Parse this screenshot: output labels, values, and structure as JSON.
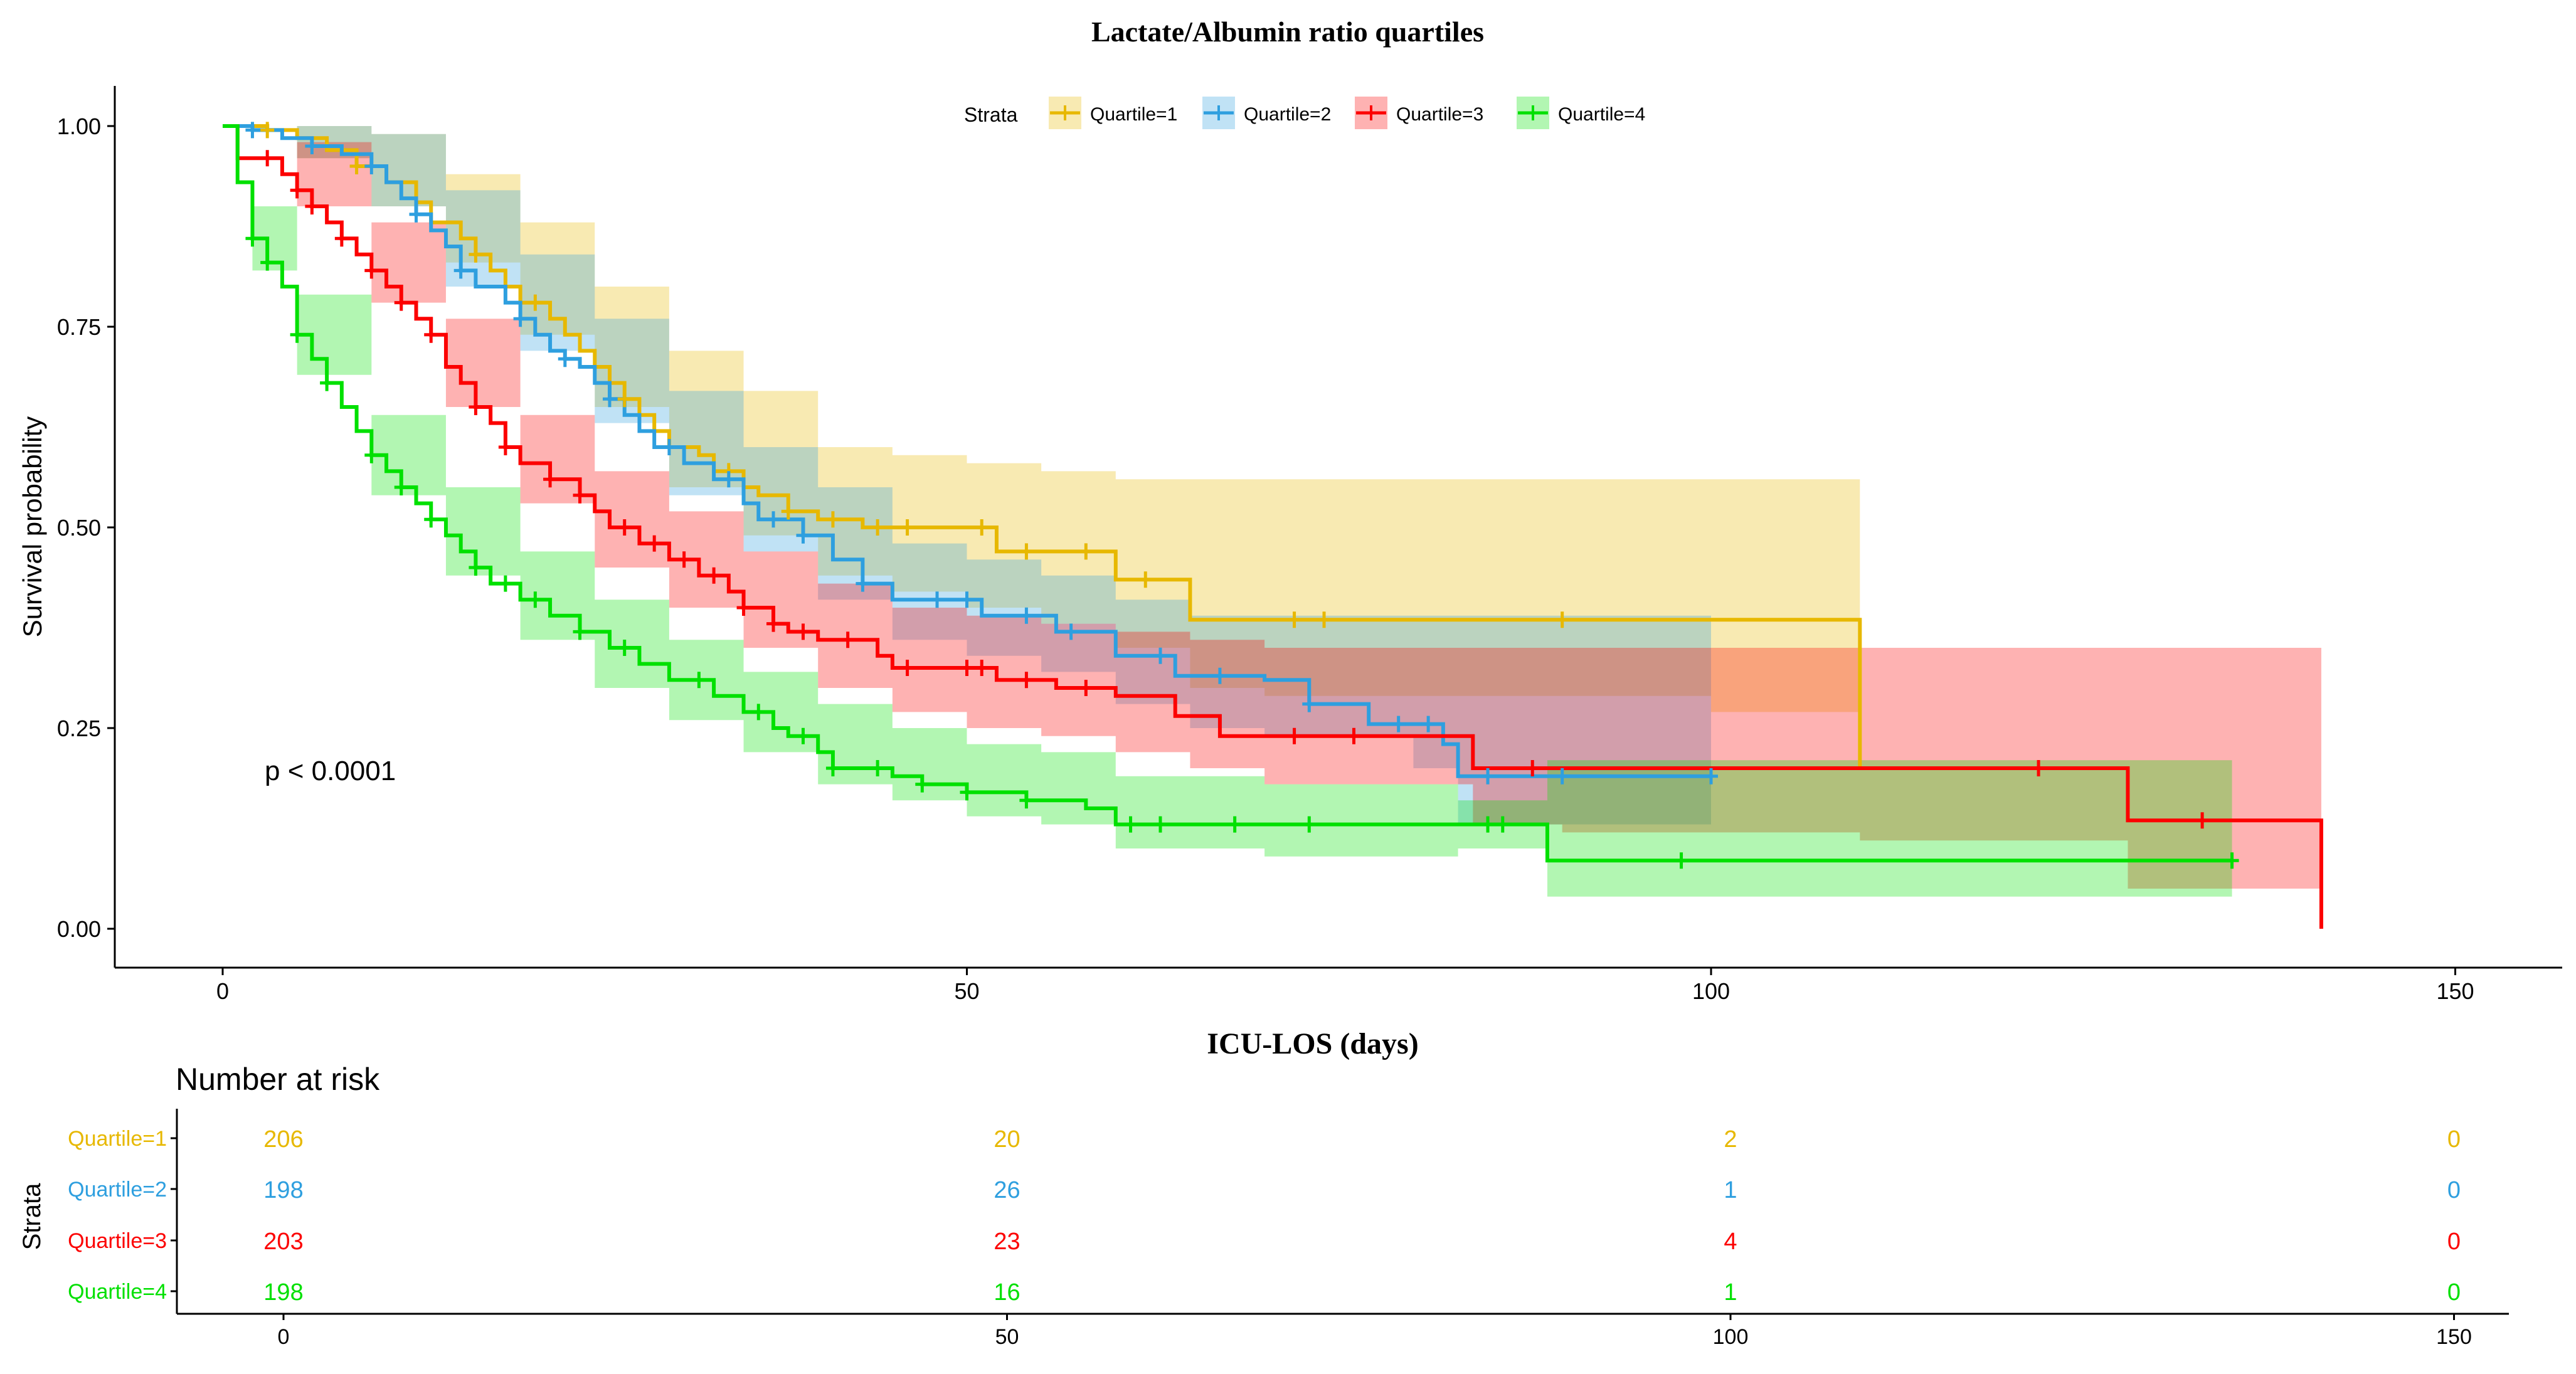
{
  "chart_data": {
    "type": "line",
    "subtype": "kaplan-meier",
    "title": "Lactate/Albumin ratio quartiles",
    "xlabel": "ICU-LOS (days)",
    "ylabel": "Survival probability",
    "xlim": [
      -7,
      158
    ],
    "ylim": [
      -0.05,
      1.05
    ],
    "x_ticks": [
      0,
      50,
      100,
      150
    ],
    "y_ticks": [
      0.0,
      0.25,
      0.5,
      0.75,
      1.0
    ],
    "y_tick_labels": [
      "0.00",
      "0.25",
      "0.50",
      "0.75",
      "1.00"
    ],
    "grid": false,
    "legend_title": "Strata",
    "legend_position": "top",
    "annotation": "p < 0.0001",
    "annotation_x": 3,
    "annotation_y": 0.2,
    "series": [
      {
        "name": "Quartile=1",
        "color": "#E7B800",
        "steps": [
          [
            0,
            1.0
          ],
          [
            3,
            0.995
          ],
          [
            5,
            0.985
          ],
          [
            7,
            0.97
          ],
          [
            9,
            0.95
          ],
          [
            11,
            0.93
          ],
          [
            13,
            0.905
          ],
          [
            14,
            0.88
          ],
          [
            16,
            0.86
          ],
          [
            17,
            0.84
          ],
          [
            18,
            0.82
          ],
          [
            19,
            0.8
          ],
          [
            20,
            0.78
          ],
          [
            22,
            0.76
          ],
          [
            23,
            0.74
          ],
          [
            24,
            0.72
          ],
          [
            25,
            0.7
          ],
          [
            26,
            0.68
          ],
          [
            27,
            0.66
          ],
          [
            28,
            0.64
          ],
          [
            29,
            0.62
          ],
          [
            30,
            0.6
          ],
          [
            32,
            0.59
          ],
          [
            33,
            0.57
          ],
          [
            35,
            0.55
          ],
          [
            36,
            0.54
          ],
          [
            38,
            0.52
          ],
          [
            40,
            0.51
          ],
          [
            43,
            0.5
          ],
          [
            52,
            0.47
          ],
          [
            56,
            0.47
          ],
          [
            60,
            0.435
          ],
          [
            65,
            0.385
          ],
          [
            110,
            0.2
          ]
        ],
        "end_x": 110,
        "ci_steps": [
          [
            0,
            1.0,
            1.0
          ],
          [
            5,
            0.96,
            1.0
          ],
          [
            10,
            0.9,
            0.99
          ],
          [
            15,
            0.83,
            0.94
          ],
          [
            20,
            0.74,
            0.88
          ],
          [
            25,
            0.65,
            0.8
          ],
          [
            30,
            0.55,
            0.72
          ],
          [
            35,
            0.49,
            0.67
          ],
          [
            40,
            0.44,
            0.6
          ],
          [
            45,
            0.42,
            0.59
          ],
          [
            50,
            0.4,
            0.58
          ],
          [
            55,
            0.38,
            0.57
          ],
          [
            60,
            0.35,
            0.56
          ],
          [
            65,
            0.3,
            0.56
          ],
          [
            70,
            0.29,
            0.56
          ],
          [
            100,
            0.27,
            0.56
          ],
          [
            110,
            0.27,
            0.56
          ]
        ],
        "censor_x": [
          3,
          9,
          17,
          21,
          27,
          34,
          38,
          41,
          44,
          46,
          51,
          54,
          58,
          62,
          72,
          74,
          90
        ]
      },
      {
        "name": "Quartile=2",
        "color": "#2E9FDF",
        "steps": [
          [
            0,
            1.0
          ],
          [
            2,
            0.995
          ],
          [
            4,
            0.985
          ],
          [
            6,
            0.975
          ],
          [
            8,
            0.965
          ],
          [
            10,
            0.95
          ],
          [
            11,
            0.93
          ],
          [
            12,
            0.91
          ],
          [
            13,
            0.89
          ],
          [
            14,
            0.87
          ],
          [
            15,
            0.85
          ],
          [
            16,
            0.82
          ],
          [
            17,
            0.8
          ],
          [
            19,
            0.78
          ],
          [
            20,
            0.76
          ],
          [
            21,
            0.74
          ],
          [
            22,
            0.72
          ],
          [
            23,
            0.71
          ],
          [
            24,
            0.7
          ],
          [
            25,
            0.68
          ],
          [
            26,
            0.66
          ],
          [
            27,
            0.64
          ],
          [
            28,
            0.62
          ],
          [
            29,
            0.6
          ],
          [
            31,
            0.58
          ],
          [
            33,
            0.56
          ],
          [
            35,
            0.53
          ],
          [
            36,
            0.51
          ],
          [
            39,
            0.49
          ],
          [
            41,
            0.46
          ],
          [
            43,
            0.43
          ],
          [
            45,
            0.41
          ],
          [
            51,
            0.39
          ],
          [
            56,
            0.37
          ],
          [
            60,
            0.34
          ],
          [
            64,
            0.315
          ],
          [
            70,
            0.31
          ],
          [
            73,
            0.28
          ],
          [
            77,
            0.255
          ],
          [
            82,
            0.23
          ],
          [
            83,
            0.19
          ],
          [
            100,
            0.19
          ]
        ],
        "end_x": 100,
        "ci_steps": [
          [
            0,
            1.0,
            1.0
          ],
          [
            5,
            0.96,
            1.0
          ],
          [
            10,
            0.9,
            0.99
          ],
          [
            15,
            0.8,
            0.92
          ],
          [
            20,
            0.72,
            0.84
          ],
          [
            25,
            0.63,
            0.76
          ],
          [
            30,
            0.54,
            0.67
          ],
          [
            35,
            0.47,
            0.6
          ],
          [
            40,
            0.41,
            0.55
          ],
          [
            45,
            0.36,
            0.48
          ],
          [
            50,
            0.34,
            0.46
          ],
          [
            55,
            0.32,
            0.44
          ],
          [
            60,
            0.28,
            0.41
          ],
          [
            65,
            0.25,
            0.39
          ],
          [
            70,
            0.24,
            0.39
          ],
          [
            80,
            0.2,
            0.39
          ],
          [
            83,
            0.13,
            0.39
          ],
          [
            100,
            0.1,
            0.39
          ]
        ],
        "censor_x": [
          2,
          6,
          10,
          13,
          16,
          20,
          23,
          26,
          30,
          34,
          37,
          39,
          43,
          48,
          50,
          54,
          57,
          63,
          67,
          73,
          79,
          81,
          85,
          90,
          100
        ]
      },
      {
        "name": "Quartile=3",
        "color": "#FC0000",
        "steps": [
          [
            0,
            1.0
          ],
          [
            1,
            0.96
          ],
          [
            4,
            0.94
          ],
          [
            5,
            0.92
          ],
          [
            6,
            0.9
          ],
          [
            7,
            0.88
          ],
          [
            8,
            0.86
          ],
          [
            9,
            0.84
          ],
          [
            10,
            0.82
          ],
          [
            11,
            0.8
          ],
          [
            12,
            0.78
          ],
          [
            13,
            0.76
          ],
          [
            14,
            0.74
          ],
          [
            15,
            0.7
          ],
          [
            16,
            0.68
          ],
          [
            17,
            0.65
          ],
          [
            18,
            0.63
          ],
          [
            19,
            0.6
          ],
          [
            20,
            0.58
          ],
          [
            22,
            0.56
          ],
          [
            24,
            0.54
          ],
          [
            25,
            0.52
          ],
          [
            26,
            0.5
          ],
          [
            28,
            0.48
          ],
          [
            30,
            0.46
          ],
          [
            32,
            0.44
          ],
          [
            34,
            0.42
          ],
          [
            35,
            0.4
          ],
          [
            37,
            0.38
          ],
          [
            38,
            0.37
          ],
          [
            40,
            0.36
          ],
          [
            44,
            0.34
          ],
          [
            45,
            0.325
          ],
          [
            47,
            0.325
          ],
          [
            52,
            0.31
          ],
          [
            56,
            0.3
          ],
          [
            60,
            0.29
          ],
          [
            64,
            0.265
          ],
          [
            67,
            0.24
          ],
          [
            84,
            0.2
          ],
          [
            128,
            0.135
          ],
          [
            141,
            0.135
          ]
        ],
        "end_x": 141,
        "end_y": 0.0,
        "ci_steps": [
          [
            0,
            1.0,
            1.0
          ],
          [
            5,
            0.9,
            0.98
          ],
          [
            10,
            0.78,
            0.88
          ],
          [
            15,
            0.65,
            0.76
          ],
          [
            20,
            0.53,
            0.64
          ],
          [
            25,
            0.45,
            0.57
          ],
          [
            30,
            0.4,
            0.52
          ],
          [
            35,
            0.35,
            0.47
          ],
          [
            40,
            0.3,
            0.43
          ],
          [
            45,
            0.27,
            0.4
          ],
          [
            50,
            0.25,
            0.39
          ],
          [
            55,
            0.24,
            0.38
          ],
          [
            60,
            0.22,
            0.37
          ],
          [
            65,
            0.2,
            0.36
          ],
          [
            70,
            0.18,
            0.35
          ],
          [
            84,
            0.13,
            0.35
          ],
          [
            90,
            0.12,
            0.35
          ],
          [
            110,
            0.11,
            0.35
          ],
          [
            128,
            0.05,
            0.35
          ],
          [
            141,
            0.05,
            0.35
          ]
        ],
        "censor_x": [
          3,
          5,
          6,
          8,
          10,
          12,
          14,
          17,
          19,
          22,
          24,
          27,
          29,
          31,
          33,
          35,
          37,
          39,
          42,
          46,
          50,
          51,
          54,
          58,
          72,
          76,
          88,
          122,
          133
        ]
      },
      {
        "name": "Quartile=4",
        "color": "#00E000",
        "steps": [
          [
            0,
            1.0
          ],
          [
            1,
            0.93
          ],
          [
            2,
            0.86
          ],
          [
            3,
            0.83
          ],
          [
            4,
            0.8
          ],
          [
            5,
            0.74
          ],
          [
            6,
            0.71
          ],
          [
            7,
            0.68
          ],
          [
            8,
            0.65
          ],
          [
            9,
            0.62
          ],
          [
            10,
            0.59
          ],
          [
            11,
            0.57
          ],
          [
            12,
            0.55
          ],
          [
            13,
            0.53
          ],
          [
            14,
            0.51
          ],
          [
            15,
            0.49
          ],
          [
            16,
            0.47
          ],
          [
            17,
            0.45
          ],
          [
            18,
            0.43
          ],
          [
            20,
            0.41
          ],
          [
            22,
            0.39
          ],
          [
            24,
            0.37
          ],
          [
            26,
            0.35
          ],
          [
            28,
            0.33
          ],
          [
            30,
            0.31
          ],
          [
            33,
            0.29
          ],
          [
            35,
            0.27
          ],
          [
            37,
            0.25
          ],
          [
            38,
            0.24
          ],
          [
            40,
            0.22
          ],
          [
            41,
            0.2
          ],
          [
            45,
            0.19
          ],
          [
            47,
            0.18
          ],
          [
            50,
            0.17
          ],
          [
            54,
            0.16
          ],
          [
            58,
            0.15
          ],
          [
            60,
            0.13
          ],
          [
            89,
            0.085
          ],
          [
            135,
            0.085
          ]
        ],
        "end_x": 135,
        "ci_steps": [
          [
            0,
            1.0,
            1.0
          ],
          [
            2,
            0.82,
            0.9
          ],
          [
            5,
            0.69,
            0.79
          ],
          [
            10,
            0.54,
            0.64
          ],
          [
            15,
            0.44,
            0.55
          ],
          [
            20,
            0.36,
            0.47
          ],
          [
            25,
            0.3,
            0.41
          ],
          [
            30,
            0.26,
            0.36
          ],
          [
            35,
            0.22,
            0.32
          ],
          [
            40,
            0.18,
            0.28
          ],
          [
            45,
            0.16,
            0.25
          ],
          [
            50,
            0.14,
            0.23
          ],
          [
            55,
            0.13,
            0.22
          ],
          [
            60,
            0.1,
            0.19
          ],
          [
            70,
            0.09,
            0.18
          ],
          [
            83,
            0.1,
            0.16
          ],
          [
            89,
            0.04,
            0.21
          ],
          [
            135,
            0.04,
            0.21
          ]
        ],
        "censor_x": [
          2,
          3,
          5,
          7,
          10,
          12,
          14,
          17,
          19,
          21,
          24,
          27,
          32,
          36,
          39,
          41,
          44,
          47,
          50,
          54,
          61,
          63,
          68,
          73,
          85,
          86,
          98,
          135
        ]
      }
    ],
    "risk_table": {
      "title": "Number at risk",
      "ylabel": "Strata",
      "x_ticks": [
        0,
        50,
        100,
        150
      ],
      "rows": [
        {
          "name": "Quartile=1",
          "color": "#E7B800",
          "values": [
            "206",
            "20",
            "2",
            "0"
          ]
        },
        {
          "name": "Quartile=2",
          "color": "#2E9FDF",
          "values": [
            "198",
            "26",
            "1",
            "0"
          ]
        },
        {
          "name": "Quartile=3",
          "color": "#FC0000",
          "values": [
            "203",
            "23",
            "4",
            "0"
          ]
        },
        {
          "name": "Quartile=4",
          "color": "#00E000",
          "values": [
            "198",
            "16",
            "1",
            "0"
          ]
        }
      ]
    }
  }
}
